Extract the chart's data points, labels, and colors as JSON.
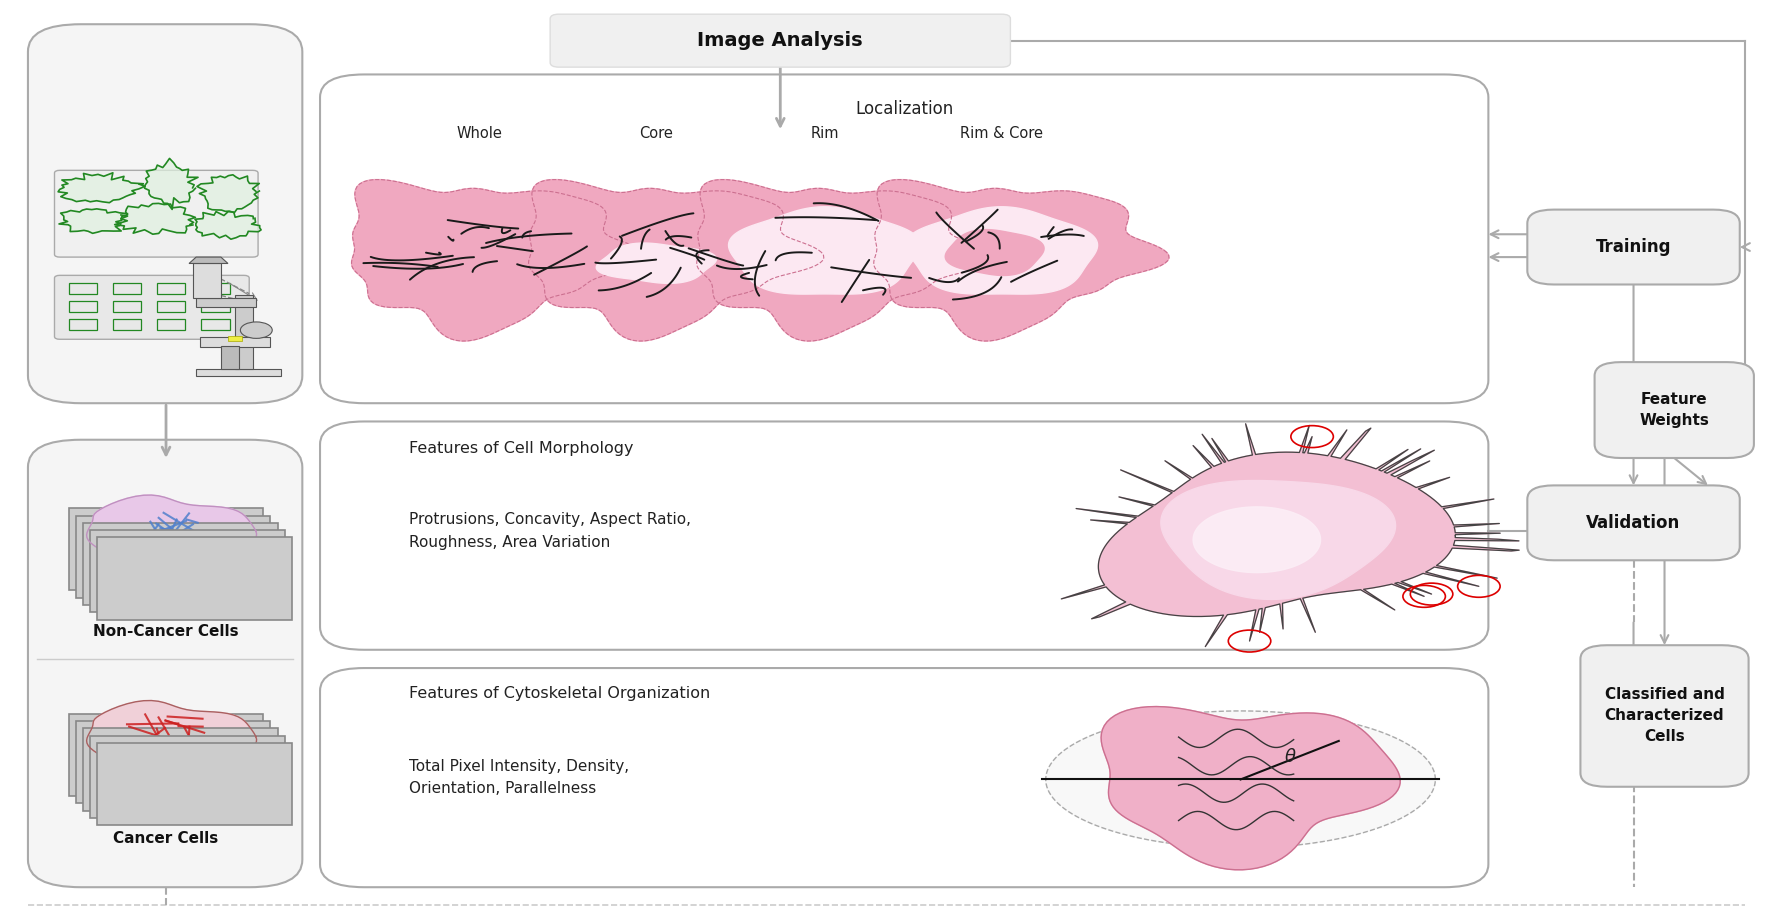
{
  "title": "Image Analysis",
  "bg_color": "#ffffff",
  "fig_width": 17.73,
  "fig_height": 9.16,
  "localization_labels": [
    "Whole",
    "Core",
    "Rim",
    "Rim & Core"
  ],
  "morphology_title": "Features of Cell Morphology",
  "morphology_text": "Protrusions, Concavity, Aspect Ratio,\nRoughness, Area Variation",
  "cytoskeletal_title": "Features of Cytoskeletal Organization",
  "cytoskeletal_text": "Total Pixel Intensity, Density,\nOrientation, Parallelness",
  "arrow_color": "#aaaaaa",
  "box_edge_color": "#aaaaaa",
  "cell_pink": "#f0b0cc",
  "cell_pink_light": "#fce0ec",
  "cell_pink_highlight": "#f8c8dc"
}
